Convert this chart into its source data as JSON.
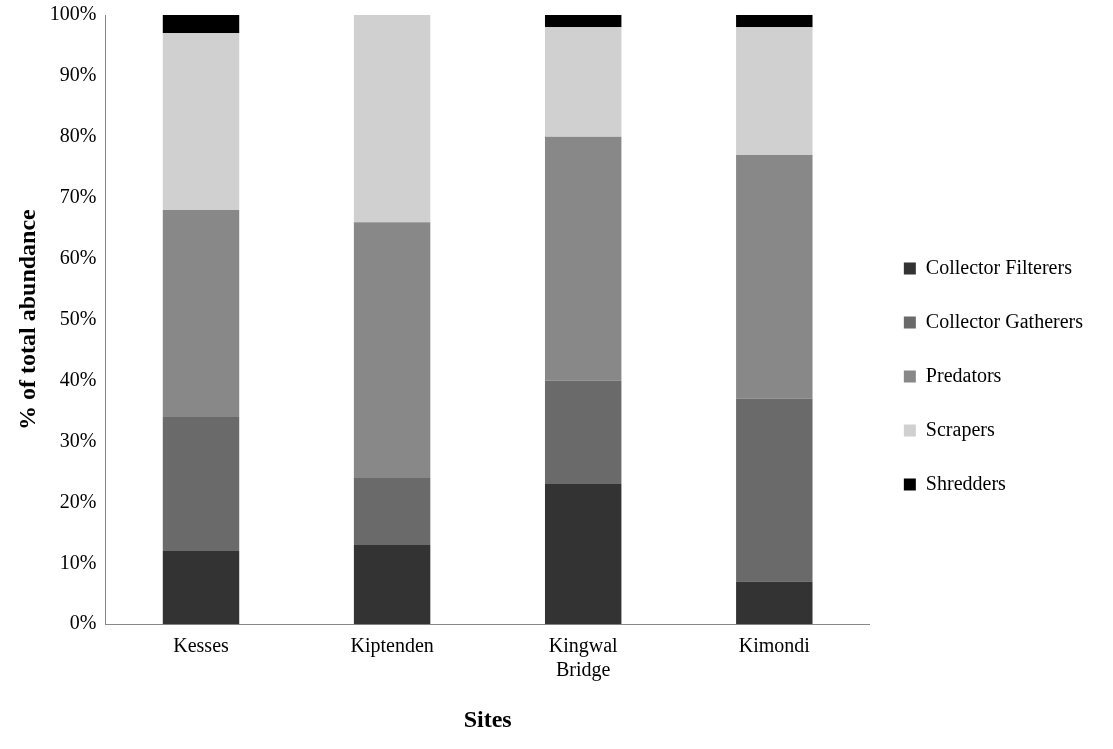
{
  "chart_data": {
    "type": "bar",
    "stacked": true,
    "xlabel": "Sites",
    "ylabel": "% of total abundance",
    "categories": [
      "Kesses",
      "Kiptenden",
      "Kingwal Bridge",
      "Kimondi"
    ],
    "series": [
      {
        "name": "Collector Filterers",
        "color": "#333333",
        "values": [
          12,
          13,
          23,
          7
        ]
      },
      {
        "name": "Collector Gatherers",
        "color": "#6a6a6a",
        "values": [
          22,
          11,
          17,
          30
        ]
      },
      {
        "name": "Predators",
        "color": "#888888",
        "values": [
          34,
          42,
          40,
          40
        ]
      },
      {
        "name": "Scrapers",
        "color": "#d0d0d0",
        "values": [
          29,
          34,
          18,
          21
        ]
      },
      {
        "name": "Shredders",
        "color": "#000000",
        "values": [
          3,
          0,
          2,
          2
        ]
      }
    ],
    "ylim": [
      0,
      100
    ],
    "yticks": [
      {
        "value": 0,
        "label": "0%"
      },
      {
        "value": 10,
        "label": "10%"
      },
      {
        "value": 20,
        "label": "20%"
      },
      {
        "value": 30,
        "label": "30%"
      },
      {
        "value": 40,
        "label": "40%"
      },
      {
        "value": 50,
        "label": "50%"
      },
      {
        "value": 60,
        "label": "60%"
      },
      {
        "value": 70,
        "label": "70%"
      },
      {
        "value": 80,
        "label": "80%"
      },
      {
        "value": 90,
        "label": "90%"
      },
      {
        "value": 100,
        "label": "100%"
      }
    ],
    "legend": "right"
  }
}
